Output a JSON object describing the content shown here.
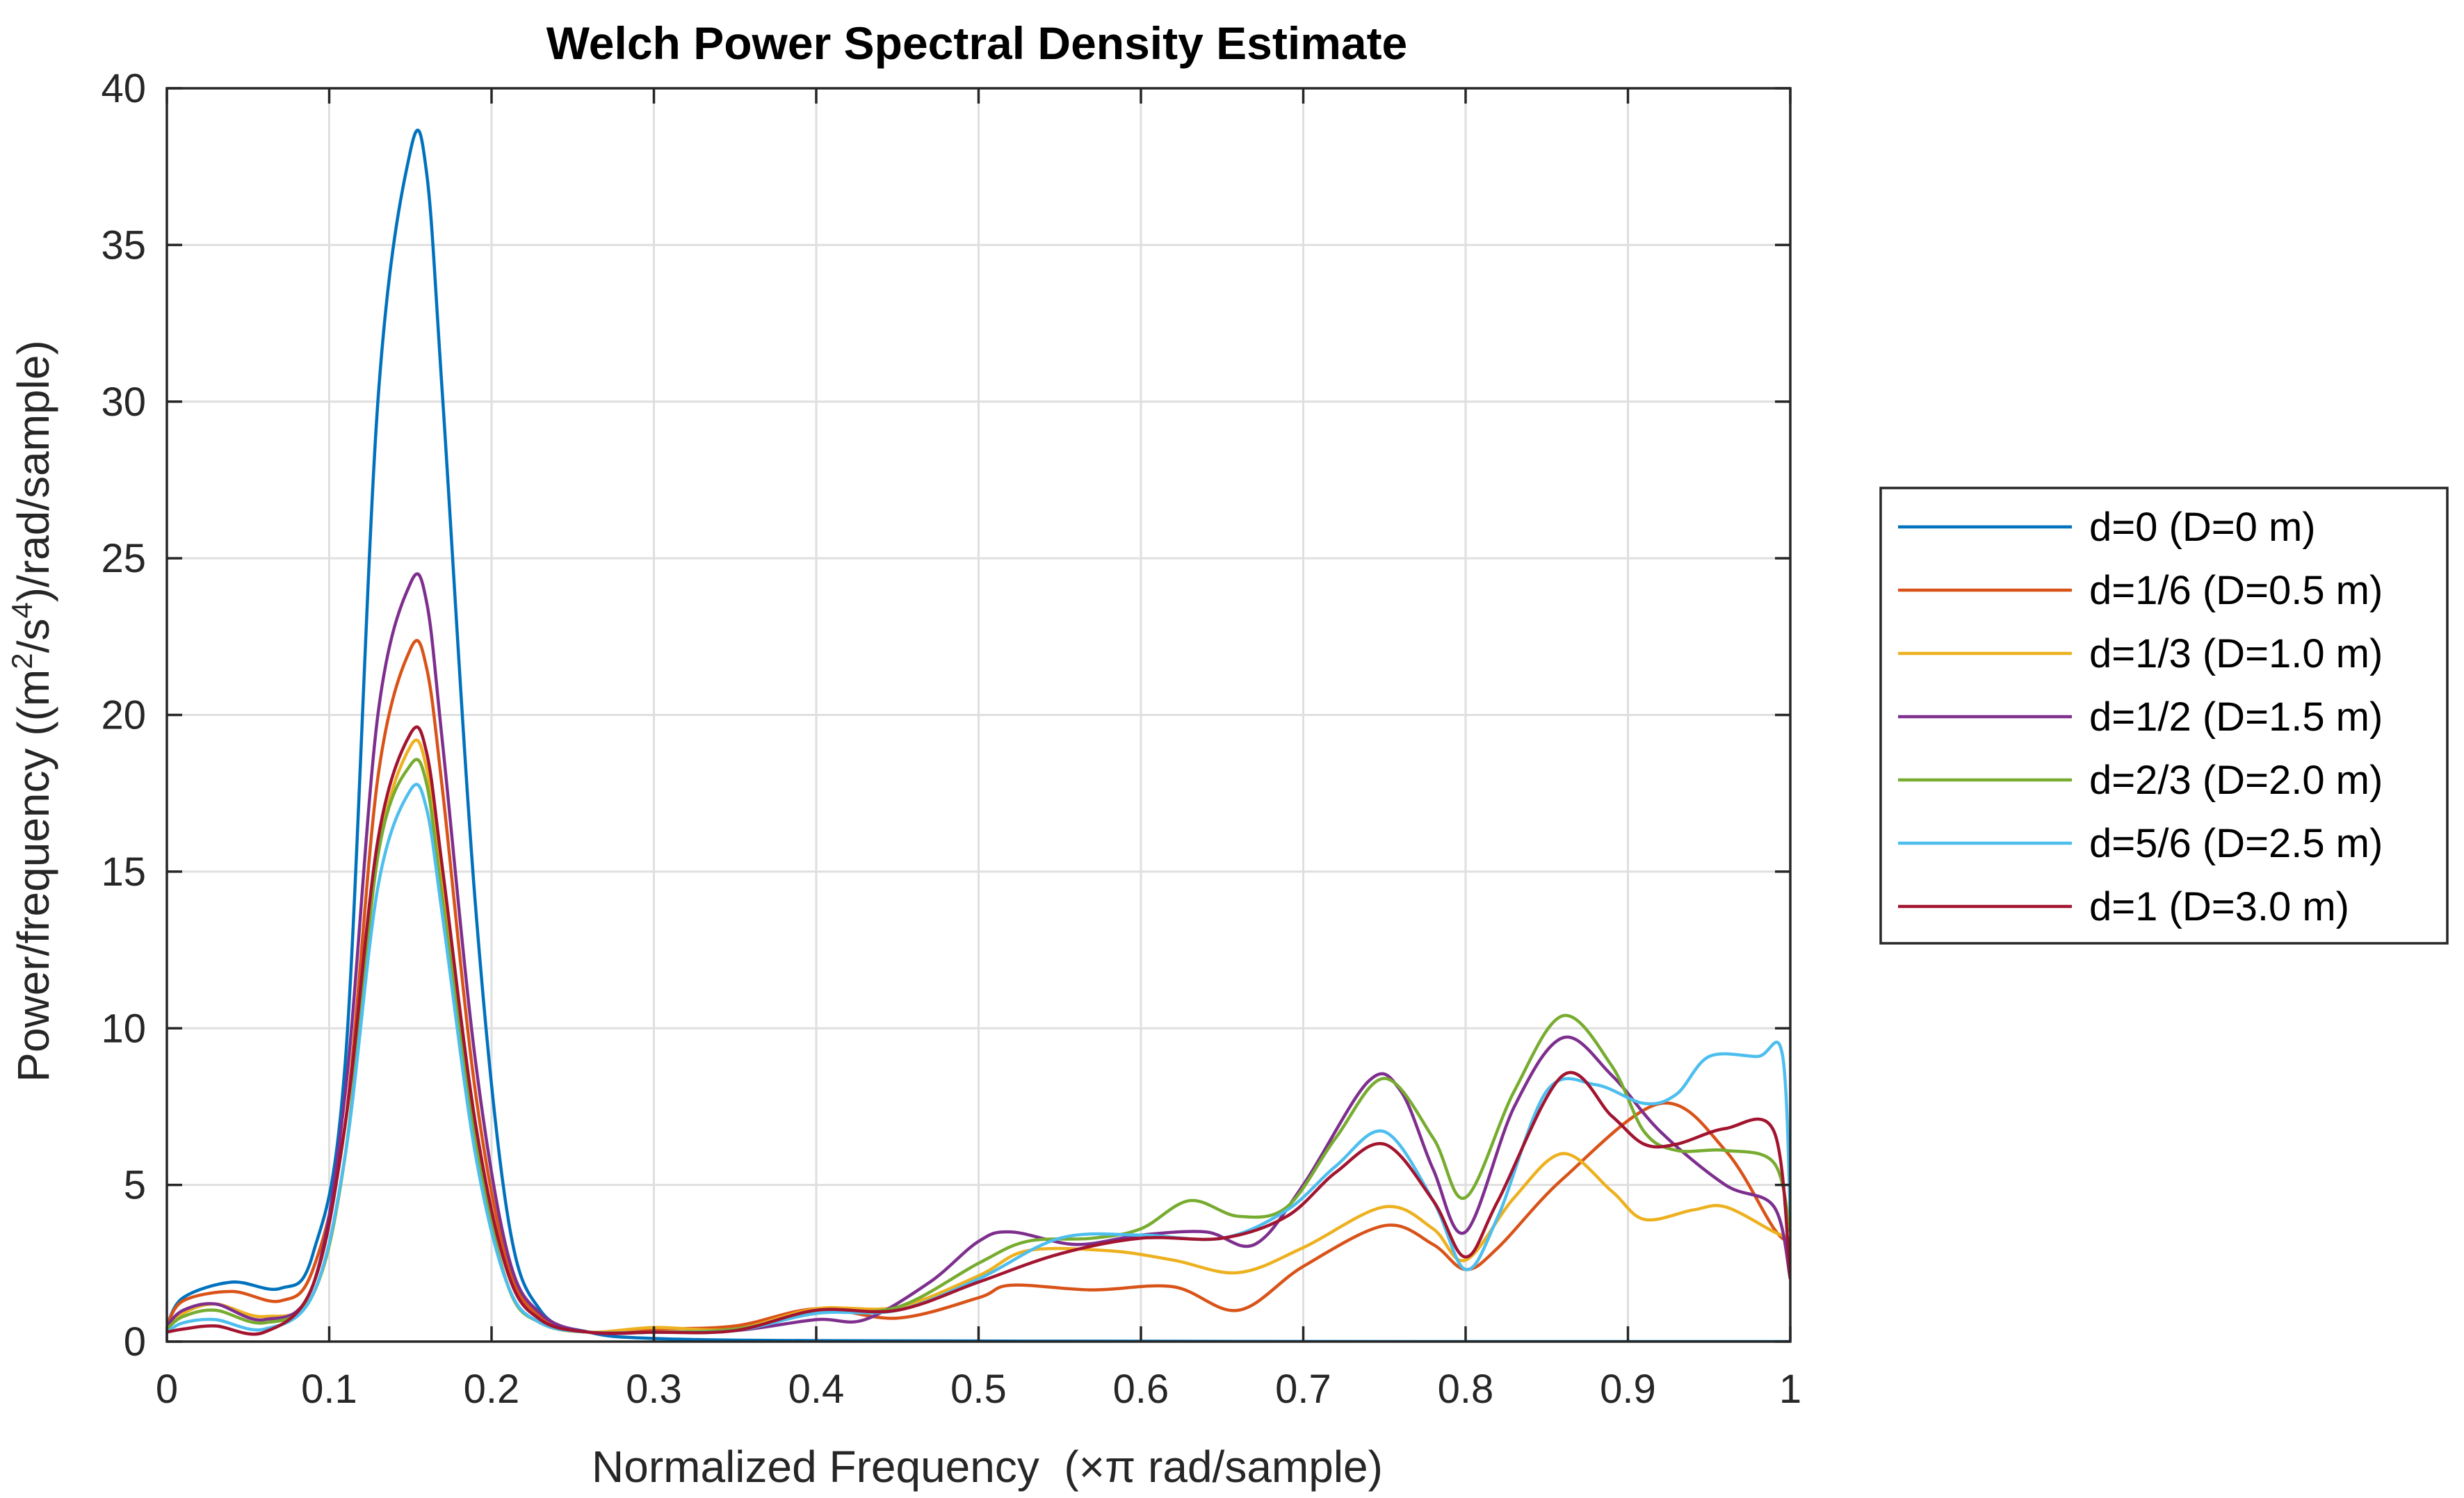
{
  "chart_data": {
    "type": "line",
    "title": "Welch Power Spectral Density Estimate",
    "xlabel": "Normalized Frequency  (×π rad/sample)",
    "ylabel_parts": [
      "Power/frequency ((m",
      "2",
      "/s",
      "4",
      ")/rad/sample)"
    ],
    "xlim": [
      0,
      1
    ],
    "ylim": [
      0,
      40
    ],
    "grid": true,
    "legend_position": "outside-right",
    "x_ticks": [
      "0",
      "0.1",
      "0.2",
      "0.3",
      "0.4",
      "0.5",
      "0.6",
      "0.7",
      "0.8",
      "0.9",
      "1"
    ],
    "y_ticks": [
      "0",
      "5",
      "10",
      "15",
      "20",
      "25",
      "30",
      "35",
      "40"
    ],
    "series": [
      {
        "name": "d=0 (D=0 m)",
        "color": "#0072BD",
        "points": [
          [
            0,
            0.5
          ],
          [
            0.01,
            1.4
          ],
          [
            0.04,
            1.9
          ],
          [
            0.07,
            1.7
          ],
          [
            0.09,
            2.8
          ],
          [
            0.11,
            9
          ],
          [
            0.13,
            30
          ],
          [
            0.15,
            38
          ],
          [
            0.16,
            37.3
          ],
          [
            0.17,
            30
          ],
          [
            0.19,
            14
          ],
          [
            0.21,
            4
          ],
          [
            0.23,
            1
          ],
          [
            0.26,
            0.3
          ],
          [
            0.3,
            0.1
          ],
          [
            0.4,
            0.03
          ],
          [
            0.6,
            0.01
          ],
          [
            0.8,
            0
          ],
          [
            1,
            0
          ]
        ]
      },
      {
        "name": "d=1/6 (D=0.5 m)",
        "color": "#D95319",
        "points": [
          [
            0,
            0.5
          ],
          [
            0.01,
            1.3
          ],
          [
            0.04,
            1.6
          ],
          [
            0.07,
            1.3
          ],
          [
            0.09,
            2.3
          ],
          [
            0.11,
            7
          ],
          [
            0.13,
            18
          ],
          [
            0.15,
            22.1
          ],
          [
            0.16,
            21.5
          ],
          [
            0.17,
            17.5
          ],
          [
            0.19,
            8
          ],
          [
            0.21,
            2.5
          ],
          [
            0.23,
            0.8
          ],
          [
            0.26,
            0.3
          ],
          [
            0.3,
            0.4
          ],
          [
            0.35,
            0.5
          ],
          [
            0.4,
            1.05
          ],
          [
            0.45,
            0.75
          ],
          [
            0.5,
            1.4
          ],
          [
            0.52,
            1.8
          ],
          [
            0.57,
            1.65
          ],
          [
            0.62,
            1.75
          ],
          [
            0.66,
            1.0
          ],
          [
            0.7,
            2.4
          ],
          [
            0.75,
            3.7
          ],
          [
            0.78,
            3.1
          ],
          [
            0.8,
            2.3
          ],
          [
            0.82,
            3.0
          ],
          [
            0.86,
            5.2
          ],
          [
            0.92,
            7.6
          ],
          [
            0.96,
            6.1
          ],
          [
            0.99,
            3.6
          ],
          [
            1,
            3.2
          ]
        ]
      },
      {
        "name": "d=1/3 (D=1.0 m)",
        "color": "#EDB120",
        "points": [
          [
            0,
            0.4
          ],
          [
            0.01,
            0.9
          ],
          [
            0.03,
            1.2
          ],
          [
            0.06,
            0.8
          ],
          [
            0.09,
            1.5
          ],
          [
            0.11,
            6
          ],
          [
            0.13,
            15.5
          ],
          [
            0.15,
            19
          ],
          [
            0.16,
            18.3
          ],
          [
            0.17,
            14.5
          ],
          [
            0.19,
            6.5
          ],
          [
            0.21,
            1.8
          ],
          [
            0.23,
            0.6
          ],
          [
            0.26,
            0.3
          ],
          [
            0.3,
            0.45
          ],
          [
            0.35,
            0.4
          ],
          [
            0.4,
            1.05
          ],
          [
            0.45,
            1.1
          ],
          [
            0.5,
            2.1
          ],
          [
            0.53,
            2.9
          ],
          [
            0.58,
            2.9
          ],
          [
            0.62,
            2.6
          ],
          [
            0.66,
            2.2
          ],
          [
            0.7,
            3.0
          ],
          [
            0.75,
            4.3
          ],
          [
            0.78,
            3.6
          ],
          [
            0.8,
            2.6
          ],
          [
            0.83,
            4.6
          ],
          [
            0.86,
            6.0
          ],
          [
            0.89,
            4.8
          ],
          [
            0.91,
            3.9
          ],
          [
            0.94,
            4.2
          ],
          [
            0.96,
            4.3
          ],
          [
            0.99,
            3.5
          ],
          [
            1,
            3.3
          ]
        ]
      },
      {
        "name": "d=1/2 (D=1.5 m)",
        "color": "#7E2F8E",
        "points": [
          [
            0,
            0.5
          ],
          [
            0.01,
            1.0
          ],
          [
            0.03,
            1.2
          ],
          [
            0.06,
            0.7
          ],
          [
            0.09,
            1.8
          ],
          [
            0.11,
            8
          ],
          [
            0.13,
            20
          ],
          [
            0.15,
            24.2
          ],
          [
            0.16,
            23.6
          ],
          [
            0.17,
            19
          ],
          [
            0.19,
            9
          ],
          [
            0.21,
            2.8
          ],
          [
            0.23,
            0.9
          ],
          [
            0.26,
            0.3
          ],
          [
            0.3,
            0.3
          ],
          [
            0.35,
            0.35
          ],
          [
            0.4,
            0.7
          ],
          [
            0.43,
            0.7
          ],
          [
            0.47,
            1.9
          ],
          [
            0.5,
            3.2
          ],
          [
            0.52,
            3.5
          ],
          [
            0.56,
            3.1
          ],
          [
            0.6,
            3.4
          ],
          [
            0.64,
            3.5
          ],
          [
            0.67,
            3.1
          ],
          [
            0.7,
            5.0
          ],
          [
            0.74,
            8.3
          ],
          [
            0.76,
            8.0
          ],
          [
            0.78,
            5.5
          ],
          [
            0.8,
            3.5
          ],
          [
            0.83,
            7.5
          ],
          [
            0.86,
            9.7
          ],
          [
            0.89,
            8.5
          ],
          [
            0.92,
            6.7
          ],
          [
            0.96,
            5.0
          ],
          [
            0.99,
            4.3
          ],
          [
            1,
            2.0
          ]
        ]
      },
      {
        "name": "d=2/3 (D=2.0 m)",
        "color": "#77AC30",
        "points": [
          [
            0,
            0.4
          ],
          [
            0.01,
            0.8
          ],
          [
            0.03,
            1.0
          ],
          [
            0.06,
            0.6
          ],
          [
            0.09,
            1.5
          ],
          [
            0.11,
            6
          ],
          [
            0.13,
            15.5
          ],
          [
            0.15,
            18.4
          ],
          [
            0.16,
            17.8
          ],
          [
            0.17,
            14
          ],
          [
            0.19,
            6.5
          ],
          [
            0.21,
            1.8
          ],
          [
            0.23,
            0.6
          ],
          [
            0.26,
            0.3
          ],
          [
            0.3,
            0.3
          ],
          [
            0.35,
            0.4
          ],
          [
            0.4,
            0.9
          ],
          [
            0.45,
            1.1
          ],
          [
            0.5,
            2.5
          ],
          [
            0.53,
            3.2
          ],
          [
            0.57,
            3.3
          ],
          [
            0.6,
            3.6
          ],
          [
            0.63,
            4.5
          ],
          [
            0.66,
            4.0
          ],
          [
            0.69,
            4.3
          ],
          [
            0.72,
            6.5
          ],
          [
            0.75,
            8.4
          ],
          [
            0.78,
            6.5
          ],
          [
            0.8,
            4.6
          ],
          [
            0.83,
            8.0
          ],
          [
            0.86,
            10.4
          ],
          [
            0.89,
            8.8
          ],
          [
            0.91,
            6.7
          ],
          [
            0.93,
            6.1
          ],
          [
            0.96,
            6.1
          ],
          [
            0.99,
            5.7
          ],
          [
            1,
            3.5
          ]
        ]
      },
      {
        "name": "d=5/6 (D=2.5 m)",
        "color": "#4DBEEE",
        "points": [
          [
            0,
            0.3
          ],
          [
            0.01,
            0.6
          ],
          [
            0.03,
            0.7
          ],
          [
            0.06,
            0.4
          ],
          [
            0.09,
            1.5
          ],
          [
            0.11,
            6
          ],
          [
            0.13,
            14.5
          ],
          [
            0.15,
            17.6
          ],
          [
            0.16,
            17.0
          ],
          [
            0.17,
            13.5
          ],
          [
            0.19,
            6
          ],
          [
            0.21,
            1.8
          ],
          [
            0.23,
            0.6
          ],
          [
            0.26,
            0.3
          ],
          [
            0.3,
            0.3
          ],
          [
            0.35,
            0.35
          ],
          [
            0.4,
            0.9
          ],
          [
            0.45,
            1.0
          ],
          [
            0.5,
            2.0
          ],
          [
            0.55,
            3.3
          ],
          [
            0.6,
            3.4
          ],
          [
            0.65,
            3.3
          ],
          [
            0.69,
            4.2
          ],
          [
            0.72,
            5.6
          ],
          [
            0.75,
            6.7
          ],
          [
            0.78,
            4.5
          ],
          [
            0.8,
            2.3
          ],
          [
            0.82,
            4.0
          ],
          [
            0.85,
            8.0
          ],
          [
            0.88,
            8.2
          ],
          [
            0.91,
            7.6
          ],
          [
            0.93,
            7.9
          ],
          [
            0.95,
            9.1
          ],
          [
            0.98,
            9.1
          ],
          [
            0.995,
            9.2
          ],
          [
            1,
            4.0
          ]
        ]
      },
      {
        "name": "d=1 (D=3.0 m)",
        "color": "#A2142F",
        "points": [
          [
            0,
            0.3
          ],
          [
            0.01,
            0.4
          ],
          [
            0.03,
            0.5
          ],
          [
            0.06,
            0.3
          ],
          [
            0.09,
            1.8
          ],
          [
            0.11,
            7
          ],
          [
            0.13,
            16
          ],
          [
            0.15,
            19.4
          ],
          [
            0.16,
            18.8
          ],
          [
            0.17,
            15
          ],
          [
            0.19,
            7
          ],
          [
            0.21,
            2.2
          ],
          [
            0.23,
            0.7
          ],
          [
            0.26,
            0.3
          ],
          [
            0.3,
            0.3
          ],
          [
            0.35,
            0.35
          ],
          [
            0.4,
            1.0
          ],
          [
            0.45,
            1.0
          ],
          [
            0.5,
            1.9
          ],
          [
            0.55,
            2.8
          ],
          [
            0.6,
            3.3
          ],
          [
            0.65,
            3.3
          ],
          [
            0.69,
            4.0
          ],
          [
            0.72,
            5.4
          ],
          [
            0.75,
            6.3
          ],
          [
            0.78,
            4.5
          ],
          [
            0.8,
            2.7
          ],
          [
            0.82,
            4.5
          ],
          [
            0.86,
            8.5
          ],
          [
            0.89,
            7.2
          ],
          [
            0.91,
            6.3
          ],
          [
            0.93,
            6.3
          ],
          [
            0.96,
            6.8
          ],
          [
            0.99,
            6.7
          ],
          [
            1,
            2.0
          ]
        ]
      }
    ]
  }
}
